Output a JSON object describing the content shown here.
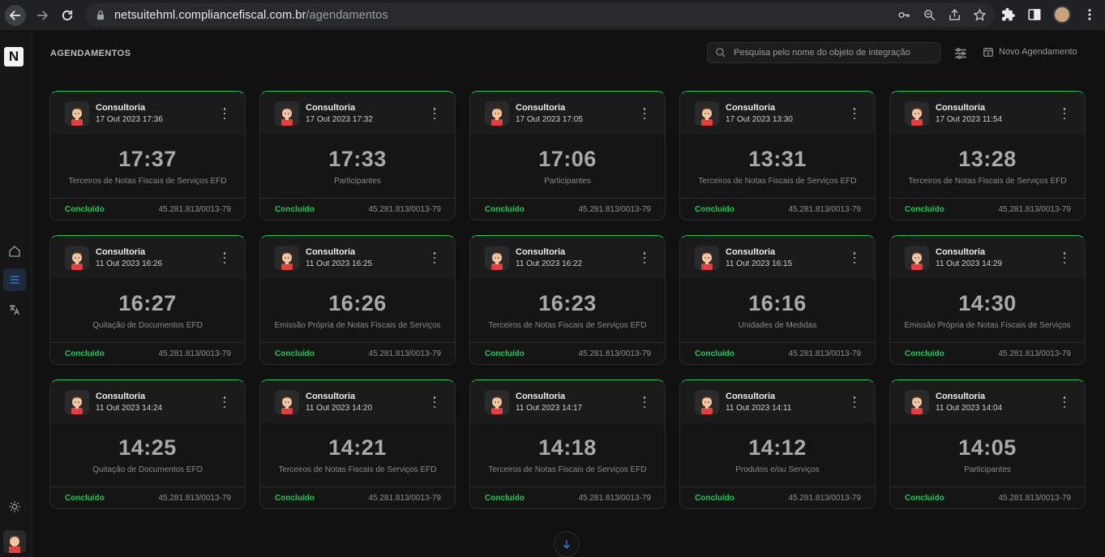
{
  "browser": {
    "url_domain": "netsuitehml.compliancefiscal.com.br",
    "url_path": "/agendamentos"
  },
  "header": {
    "title": "AGENDAMENTOS",
    "search_placeholder": "Pesquisa pelo nome do objeto de integração",
    "new_label": "Novo Agendamento"
  },
  "brand": {
    "logo": "N"
  },
  "colors": {
    "accent": "#22c55e",
    "highlight": "#3b82f6",
    "background": "#111111"
  },
  "cards": [
    {
      "title": "Consultoria",
      "date": "17 Out 2023 17:36",
      "time": "17:37",
      "desc": "Terceiros de Notas Fiscais de Serviços EFD",
      "status": "Concluído",
      "cnpj": "45.281.813/0013-79"
    },
    {
      "title": "Consultoria",
      "date": "17 Out 2023 17:32",
      "time": "17:33",
      "desc": "Participantes",
      "status": "Concluído",
      "cnpj": "45.281.813/0013-79"
    },
    {
      "title": "Consultoria",
      "date": "17 Out 2023 17:05",
      "time": "17:06",
      "desc": "Participantes",
      "status": "Concluído",
      "cnpj": "45.281.813/0013-79"
    },
    {
      "title": "Consultoria",
      "date": "17 Out 2023 13:30",
      "time": "13:31",
      "desc": "Terceiros de Notas Fiscais de Serviços EFD",
      "status": "Concluído",
      "cnpj": "45.281.813/0013-79"
    },
    {
      "title": "Consultoria",
      "date": "17 Out 2023 11:54",
      "time": "13:28",
      "desc": "Terceiros de Notas Fiscais de Serviços EFD",
      "status": "Concluído",
      "cnpj": "45.281.813/0013-79"
    },
    {
      "title": "Consultoria",
      "date": "11 Out 2023 16:26",
      "time": "16:27",
      "desc": "Quitação de Documentos EFD",
      "status": "Concluído",
      "cnpj": "45.281.813/0013-79"
    },
    {
      "title": "Consultoria",
      "date": "11 Out 2023 16:25",
      "time": "16:26",
      "desc": "Emissão Própria de Notas Fiscais de Serviços",
      "status": "Concluído",
      "cnpj": "45.281.813/0013-79"
    },
    {
      "title": "Consultoria",
      "date": "11 Out 2023 16:22",
      "time": "16:23",
      "desc": "Terceiros de Notas Fiscais de Serviços EFD",
      "status": "Concluído",
      "cnpj": "45.281.813/0013-79"
    },
    {
      "title": "Consultoria",
      "date": "11 Out 2023 16:15",
      "time": "16:16",
      "desc": "Unidades de Medidas",
      "status": "Concluído",
      "cnpj": "45.281.813/0013-79"
    },
    {
      "title": "Consultoria",
      "date": "11 Out 2023 14:29",
      "time": "14:30",
      "desc": "Emissão Própria de Notas Fiscais de Serviços",
      "status": "Concluído",
      "cnpj": "45.281.813/0013-79"
    },
    {
      "title": "Consultoria",
      "date": "11 Out 2023 14:24",
      "time": "14:25",
      "desc": "Quitação de Documentos EFD",
      "status": "Concluído",
      "cnpj": "45.281.813/0013-79"
    },
    {
      "title": "Consultoria",
      "date": "11 Out 2023 14:20",
      "time": "14:21",
      "desc": "Terceiros de Notas Fiscais de Serviços EFD",
      "status": "Concluído",
      "cnpj": "45.281.813/0013-79"
    },
    {
      "title": "Consultoria",
      "date": "11 Out 2023 14:17",
      "time": "14:18",
      "desc": "Terceiros de Notas Fiscais de Serviços EFD",
      "status": "Concluído",
      "cnpj": "45.281.813/0013-79"
    },
    {
      "title": "Consultoria",
      "date": "11 Out 2023 14:11",
      "time": "14:12",
      "desc": "Produtos e/ou Serviços",
      "status": "Concluído",
      "cnpj": "45.281.813/0013-79"
    },
    {
      "title": "Consultoria",
      "date": "11 Out 2023 14:04",
      "time": "14:05",
      "desc": "Participantes",
      "status": "Concluído",
      "cnpj": "45.281.813/0013-79"
    }
  ]
}
